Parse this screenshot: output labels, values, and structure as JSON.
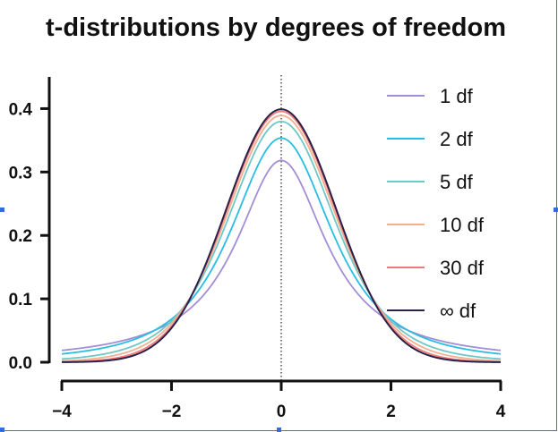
{
  "chart_data": {
    "type": "line",
    "title": "t-distributions by degrees of freedom",
    "xlabel": "",
    "ylabel": "",
    "xlim": [
      -4,
      4
    ],
    "ylim": [
      0,
      0.45
    ],
    "x_ticks": [
      -4,
      -2,
      0,
      2,
      4
    ],
    "x_tick_labels": [
      "−4",
      "−2",
      "0",
      "2",
      "4"
    ],
    "y_ticks": [
      0.0,
      0.1,
      0.2,
      0.3,
      0.4
    ],
    "y_tick_labels": [
      "0.0",
      "0.1",
      "0.2",
      "0.3",
      "0.4"
    ],
    "grid": false,
    "legend_position": "right",
    "reference_line": {
      "x": 0,
      "style": "dotted"
    },
    "series": [
      {
        "name": "1 df",
        "df": 1,
        "color": "#a38ed6"
      },
      {
        "name": "2 df",
        "df": 2,
        "color": "#29bde3"
      },
      {
        "name": "5 df",
        "df": 5,
        "color": "#6cc9c7"
      },
      {
        "name": "10 df",
        "df": 10,
        "color": "#f3b08f"
      },
      {
        "name": "30 df",
        "df": 30,
        "color": "#f07b7b"
      },
      {
        "name": "∞ df",
        "df": "infinity",
        "color": "#2a2048"
      }
    ]
  }
}
